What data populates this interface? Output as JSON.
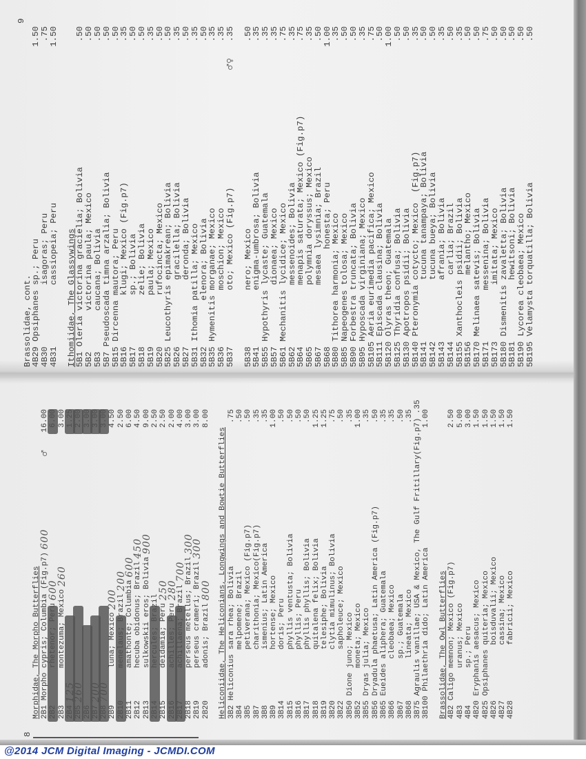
{
  "watermark": "@2014 JCM Digital Imaging - JCMDI.COM",
  "colors": {
    "watermark": "#1f3f9f",
    "paper": "#efefef",
    "marker": "#505050",
    "ink": "#3a3a3a"
  },
  "page9": {
    "page_number": "9",
    "lines": [
      {
        "type": "heading",
        "text": "Brassolidae, cont.",
        "underline": false
      },
      {
        "code": "4B29",
        "text": " Opsiphanes sp.; Peru",
        "price": "1.50"
      },
      {
        "code": "4B30",
        "text": "            isagoras; Peru",
        "price": ".75"
      },
      {
        "code": "4B31",
        "text": "            cassiopeia; Peru",
        "price": "1.50"
      },
      {
        "type": "blank"
      },
      {
        "type": "heading",
        "text": "Ithomiidae, The Glassywings",
        "underline": true
      },
      {
        "code": "5B1",
        "text": " Oleria victorina gracielia; Bolivia",
        "price": ".50"
      },
      {
        "code": "5B2",
        "text": "        victorina paula; Mexico",
        "price": ".50"
      },
      {
        "code": "5B3",
        "text": "        caucana; Bolivia",
        "price": ".50"
      },
      {
        "code": "5B7",
        "text": " Pseudoscada timna arzalia; Bolivia",
        "price": ".50"
      },
      {
        "code": "5B15",
        "text": " Dircenna mautora; Peru",
        "price": ".50"
      },
      {
        "code": "5B16",
        "text": "          klugi; Mexico (Fig.p7)",
        "price": ".35"
      },
      {
        "code": "5B17",
        "text": "          sp.; Bolivia",
        "price": ".50"
      },
      {
        "code": "5B18",
        "text": "          zelie; Bolivia",
        "price": ".50"
      },
      {
        "code": "5B19",
        "text": "          paula; Mexico",
        "price": ".35"
      },
      {
        "code": "5B20",
        "text": "          rufocincta; Mexico",
        "price": ".50"
      },
      {
        "code": "5B25",
        "text": " Leucothyris epimakrean; Bolivia",
        "price": ".50"
      },
      {
        "code": "5B26",
        "text": "             gracilella; Bolivia",
        "price": ".35"
      },
      {
        "code": "5B27",
        "text": "             deronda; Bolivia",
        "price": ".50"
      },
      {
        "code": "5B31",
        "text": " Ithomia patilla; Mexico",
        "price": ".35"
      },
      {
        "code": "5B32",
        "text": "         elenora; Bolivia",
        "price": ".50"
      },
      {
        "code": "5B35",
        "text": " Hymenitis morganae; Mexico",
        "price": ".35"
      },
      {
        "code": "5B36",
        "text": "           moschion; Mexico",
        "price": ".35"
      },
      {
        "code": "5B37",
        "text": "           oto; Mexico (Fig.p7)",
        "price": ".35",
        "note": "♂♀"
      },
      {
        "type": "blank"
      },
      {
        "code": "5B38",
        "text": "           nero; Mexico",
        "price": ".50"
      },
      {
        "code": "5B41",
        "text": "           enigma-umbrosa; Bolivia",
        "price": ".35"
      },
      {
        "code": "5B55",
        "text": " Hypothyris lycaste; Guatemala",
        "price": ".35"
      },
      {
        "code": "5B57",
        "text": "            dionaea; Mexico",
        "price": ".35"
      },
      {
        "code": "5B61",
        "text": " Mechanitis lycidice; Mexico",
        "price": ".75"
      },
      {
        "code": "5B62",
        "text": "            messenoides; Bolivia",
        "price": ".35"
      },
      {
        "code": "5B64",
        "text": "            menapis saturata; Mexico (Fig.p7)",
        "price": ".75"
      },
      {
        "code": "5B65",
        "text": "            polymnia doryssus; Mexico",
        "price": ".35"
      },
      {
        "code": "5B67",
        "text": "            mesaea lysimnia; Brazil",
        "price": ".50"
      },
      {
        "code": "5B68",
        "text": "                   honesta; Peru",
        "price": "1.00"
      },
      {
        "code": "5B80",
        "text": " Tithorea harmonia; Mexico",
        "price": ".35"
      },
      {
        "code": "5B85",
        "text": " Napeogenes tolosa; Mexico",
        "price": ".50"
      },
      {
        "code": "5B90",
        "text": " Forbestra truncata; Bolivia",
        "price": ".50"
      },
      {
        "code": "5B95",
        "text": " Hyposcada virginiana; Mexico",
        "price": ".35"
      },
      {
        "code": "5B105",
        "text": " Aeria eurimedia pacifica; Mexico",
        "price": ".75"
      },
      {
        "code": "5B111",
        "text": " Episcada clausina; Bolivia",
        "price": ".50"
      },
      {
        "code": "5B120",
        "text": " Olyras theon; Guatemala",
        "price": "1.00"
      },
      {
        "code": "5B125",
        "text": " Thyridia confusa; Bolivia",
        "price": ".50"
      },
      {
        "code": "5B130",
        "text": " Apotropos psidii; Bolivia",
        "price": ".50"
      },
      {
        "code": "5B140",
        "text": " Pteronymia cotycto; Mexico  (Fig.p7)",
        "price": ".35"
      },
      {
        "code": "5B141",
        "text": "            tucuna tanampaya; Bolivia",
        "price": ".50"
      },
      {
        "code": "5B142",
        "text": "            tucuna bueya; Bolivia",
        "price": ".50"
      },
      {
        "code": "5B143",
        "text": "            afrania; Bolivia",
        "price": ".35"
      },
      {
        "code": "5B144",
        "text": "             carlia; Brazil",
        "price": ".50"
      },
      {
        "code": "5B155",
        "text": " Xanthocleis psidii; Bolivia",
        "price": ".35"
      },
      {
        "code": "5B156",
        "text": "             melantho; Mexico",
        "price": ".50"
      },
      {
        "code": "5B170",
        "text": " Melinaea satevis; Bolivia",
        "price": ".50"
      },
      {
        "code": "5B171",
        "text": "          messenina; Bolivia",
        "price": ".75"
      },
      {
        "code": "5B173",
        "text": "           imitata; Mexico",
        "price": ".50"
      },
      {
        "code": "5B180",
        "text": " Dismenitis zavaletta; Bolivia",
        "price": ".50"
      },
      {
        "code": "5B181",
        "text": "            hewitsoni; Bolivia",
        "price": ".50"
      },
      {
        "code": "5B190",
        "text": " Lycorea cleobaea; Mexico",
        "price": ".50"
      },
      {
        "code": "5B195",
        "text": " Velamysta torquatilla; Bolivia",
        "price": ".50"
      }
    ]
  },
  "page8": {
    "page_number": "8",
    "lines": [
      {
        "type": "heading",
        "text": "Morphidae, The Morpho Butterflies",
        "underline": true
      },
      {
        "code": "2B1",
        "text": " Morpho cypris; Columbia (Fig.p7)",
        "price": "16.00",
        "hand": "600",
        "note": "♂"
      },
      {
        "code": "2B2",
        "text": "        rhetenor; Peru",
        "price": "6.00",
        "struck": true,
        "hand": "600"
      },
      {
        "code": "2B3",
        "text": "        montezuma; Mexico",
        "price": "3.00",
        "hand": "260"
      },
      {
        "code": "2B4",
        "text": "",
        "price": "1.25",
        "struck": true,
        "hand": "125"
      },
      {
        "code": "2B5",
        "text": "",
        "price": "2.00",
        "struck": true,
        "hand": "260"
      },
      {
        "code": "2B6",
        "text": "",
        "price": "3.00",
        "struck": true
      },
      {
        "code": "2B7",
        "text": "",
        "price": "3.00",
        "struck": true,
        "hand": "200"
      },
      {
        "code": "2B8",
        "text": "",
        "price": "3.00",
        "struck": true,
        "hand": "700"
      },
      {
        "code": "2B9",
        "text": "        luna; Mexico",
        "price": "4.50",
        "hand": "200"
      },
      {
        "code": "2B10",
        "text": "       menelaus; Brazil",
        "price": "2.50",
        "struck": true,
        "hand": "200"
      },
      {
        "code": "2B11",
        "text": "       amathonte; Columbia",
        "price": "6.00",
        "hand": "600"
      },
      {
        "code": "2B12",
        "text": "       hecuba obidonus; Brazil",
        "price": "4.50",
        "hand": "450"
      },
      {
        "code": "2B13",
        "text": "       sulkowskii eros; Bolivia",
        "price": "9.00",
        "hand": "900"
      },
      {
        "code": "2B14",
        "text": "       hercules; Brazil",
        "price": "2.50",
        "struck": true
      },
      {
        "code": "2B15",
        "text": "       deidamia; Peru",
        "price": "2.50",
        "hand": "250"
      },
      {
        "code": "2B16",
        "text": "       achilles; Peru",
        "price": "2.00",
        "struck": true,
        "hand": "280"
      },
      {
        "code": "2B17",
        "text": "       achillaena; Brazil",
        "price": "4.00",
        "struck": true,
        "hand": "700"
      },
      {
        "code": "2B18",
        "text": "       perseus metellus; Brazil",
        "price": "3.00",
        "hand": "300"
      },
      {
        "code": "2B19",
        "text": "       perseus crameri; Brazil",
        "price": "3.00",
        "hand": "300"
      },
      {
        "code": "2B20",
        "text": "       adonis; Brazil",
        "price": "8.00",
        "hand": "800"
      },
      {
        "type": "blank"
      },
      {
        "type": "heading",
        "text": "Heliconiidae, The Heliconians, Longwings and Bowtie Butterflies",
        "underline": true
      },
      {
        "code": "3B2",
        "text": " Heliconius sara rhea; Bolivia",
        "price": ".75"
      },
      {
        "code": "3B4",
        "text": "            melpomene; Brazil",
        "price": ".50"
      },
      {
        "code": "3B5",
        "text": "            petiverana; Mexico (Fig.p7)",
        "price": ".50"
      },
      {
        "code": "3B7",
        "text": "            charithonia; Mexico(Fig.p7)",
        "price": ".35"
      },
      {
        "code": "3B8",
        "text": "            ismenius; Latin America",
        "price": ".35"
      },
      {
        "code": "3B9",
        "text": "            hortense; Mexico",
        "price": "1.00"
      },
      {
        "code": "3B14",
        "text": "           doris; Peru",
        "price": ".50"
      },
      {
        "code": "3B15",
        "text": "           phyllis ventusta; Bolivia",
        "price": ".50"
      },
      {
        "code": "3B16",
        "text": "           phyllis; Peru",
        "price": ".50"
      },
      {
        "code": "3B17",
        "text": "           phyllis phyllis; Bolivia",
        "price": ".50"
      },
      {
        "code": "3B18",
        "text": "           quitalena felix; Bolivia",
        "price": "1.25"
      },
      {
        "code": "3B19",
        "text": "           telesiphe; Bolivia",
        "price": "1.25"
      },
      {
        "code": "3B20",
        "text": "           clytia mimulinus; Bolivia",
        "price": ".75"
      },
      {
        "code": "3B22",
        "text": "           sapholeuce; Mexico",
        "price": ".50"
      },
      {
        "code": "3B50",
        "text": " Dione juno; Mexico",
        "price": ".35"
      },
      {
        "code": "3B52",
        "text": "       moneta; Mexico",
        "price": "1.00"
      },
      {
        "code": "3B55",
        "text": " Dryas julia; Mexico",
        "price": ".35"
      },
      {
        "code": "3B56",
        "text": " Dryadula phaetusa; Latin America (Fig.p7)",
        "price": ".50"
      },
      {
        "code": "3B65",
        "text": " Eueides aliphera; Guatemala",
        "price": ".35"
      },
      {
        "code": "3B66",
        "text": "         cleobaea; Mexico",
        "price": ".35"
      },
      {
        "code": "3B67",
        "text": "         sp.; Guatemala",
        "price": ".50"
      },
      {
        "code": "3B68",
        "text": "         lineata; Mexico",
        "price": ".35"
      },
      {
        "code": "3B75",
        "text": " Agraulis vanillae; USA & Mexico, The Gulf Fritillary(Fig.p7)",
        "price": ".35"
      },
      {
        "code": "3B100",
        "text": " Philaethria dido; Latin America",
        "price": "1.00"
      },
      {
        "type": "blank"
      },
      {
        "type": "heading",
        "text": "Brassolidae, The Owl Butterflies",
        "underline": true
      },
      {
        "code": "4B2",
        "text": " Caligo memnon; Mexico (Fig.p7)",
        "price": "2.50"
      },
      {
        "code": "4B3",
        "text": "        uranus; Mexico",
        "price": "5.00"
      },
      {
        "code": "4B4",
        "text": "        sp.; Peru",
        "price": "3.00"
      },
      {
        "code": "4B20",
        "text": " Eryphanis aesacus; Mexico",
        "price": "1.50"
      },
      {
        "code": "4B25",
        "text": " Opsiphanes quiteria; Mexico",
        "price": "1.50"
      },
      {
        "code": "4B26",
        "text": "            boisduvalii; Mexico",
        "price": "1.50"
      },
      {
        "code": "4B27",
        "text": "            cassina; Mexico",
        "price": "1.50"
      },
      {
        "code": "4B28",
        "text": "            fabricii; Mexico",
        "price": "1.50"
      }
    ]
  }
}
